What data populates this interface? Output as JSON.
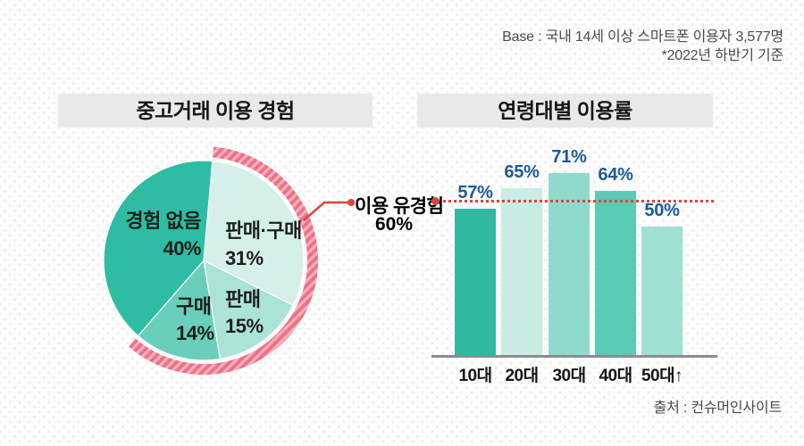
{
  "theme": {
    "accent_red": "#e2423a",
    "arc_pink": "#ed7186",
    "arc_stripe_pink": "#f6b0bc",
    "value_label_blue": "#1b5b97",
    "title_box_gray": "#e9e9e9",
    "axis_gray": "#8c8c8c"
  },
  "meta": {
    "base_line1": "Base : 국내 14세 이상 스마트폰 이용자 3,577명",
    "base_line2": "*2022년 하반기 기준",
    "source": "출처 : 컨슈머인사이트"
  },
  "annotation": {
    "label": "이용 유경험",
    "percent": 60
  },
  "chart_data": [
    {
      "type": "pie",
      "title": "중고거래 이용 경험",
      "unit": "%",
      "start_angle_deg": 5,
      "slices": [
        {
          "label": "판매·구매",
          "value": 31,
          "color": "#d5f0ea"
        },
        {
          "label": "판매",
          "value": 15,
          "color": "#abe4d7"
        },
        {
          "label": "구매",
          "value": 14,
          "color": "#69cfba"
        },
        {
          "label": "경험 없음",
          "value": 40,
          "color": "#2fbca4"
        }
      ],
      "highlight_arc": {
        "label": "이용 유경험",
        "percent": 60,
        "color": "#ed7186",
        "stripe_color": "#f6b0bc"
      }
    },
    {
      "type": "bar",
      "title": "연령대별 이용률",
      "unit": "%",
      "categories": [
        "10대",
        "20대",
        "30대",
        "40대",
        "50대↑"
      ],
      "values": [
        57,
        65,
        71,
        64,
        50
      ],
      "bar_colors": [
        "#2fb9a1",
        "#c9ece4",
        "#8edbcc",
        "#5accb5",
        "#9fe0d3"
      ],
      "value_label_color": "#1b5b97",
      "reference_line": {
        "value": 60,
        "color": "#e2423a",
        "style": "dotted"
      },
      "ylim": [
        0,
        79
      ],
      "grid": false,
      "legend": false
    }
  ]
}
